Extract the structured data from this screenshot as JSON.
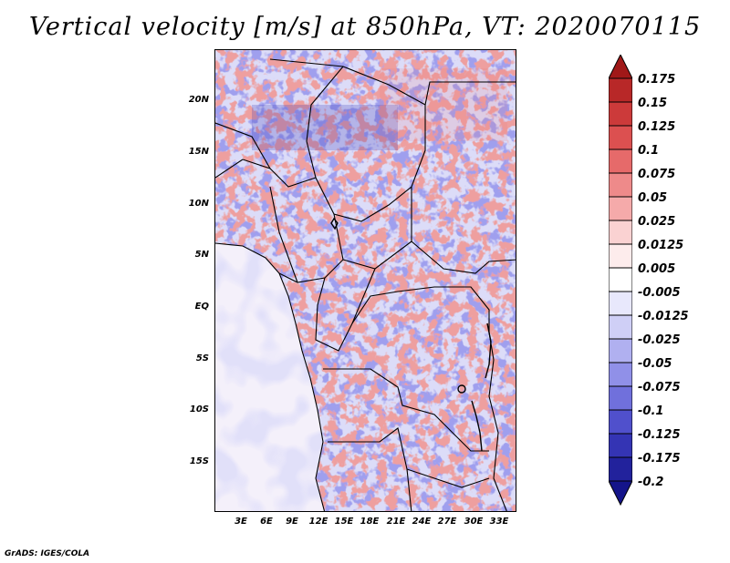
{
  "title": "Vertical velocity [m/s] at 850hPa, VT: 2020070115",
  "credit": "GrADS: IGES/COLA",
  "map": {
    "region": "Central Africa",
    "lat_labels": [
      "20N",
      "15N",
      "10N",
      "5N",
      "EQ",
      "5S",
      "10S",
      "15S"
    ],
    "lon_labels": [
      "3E",
      "6E",
      "9E",
      "12E",
      "15E",
      "18E",
      "21E",
      "24E",
      "27E",
      "30E",
      "33E"
    ],
    "field": "vertical velocity",
    "unit": "m/s",
    "level": "850hPa",
    "valid_time": "2020070115"
  },
  "colorbar": {
    "labels": [
      "0.175",
      "0.15",
      "0.125",
      "0.1",
      "0.075",
      "0.05",
      "0.025",
      "0.0125",
      "0.005",
      "-0.005",
      "-0.0125",
      "-0.025",
      "-0.05",
      "-0.075",
      "-0.1",
      "-0.125",
      "-0.175",
      "-0.2"
    ],
    "colors": [
      "#a01818",
      "#b82828",
      "#cc3a3a",
      "#dc5050",
      "#e66a6a",
      "#ee8a8a",
      "#f5aaaa",
      "#fad2d2",
      "#fdecec",
      "#ffffff",
      "#e8e8fc",
      "#cfcff6",
      "#b0b0f0",
      "#9090e8",
      "#7070dc",
      "#5050cc",
      "#3434b4",
      "#22229c",
      "#14148a"
    ]
  }
}
